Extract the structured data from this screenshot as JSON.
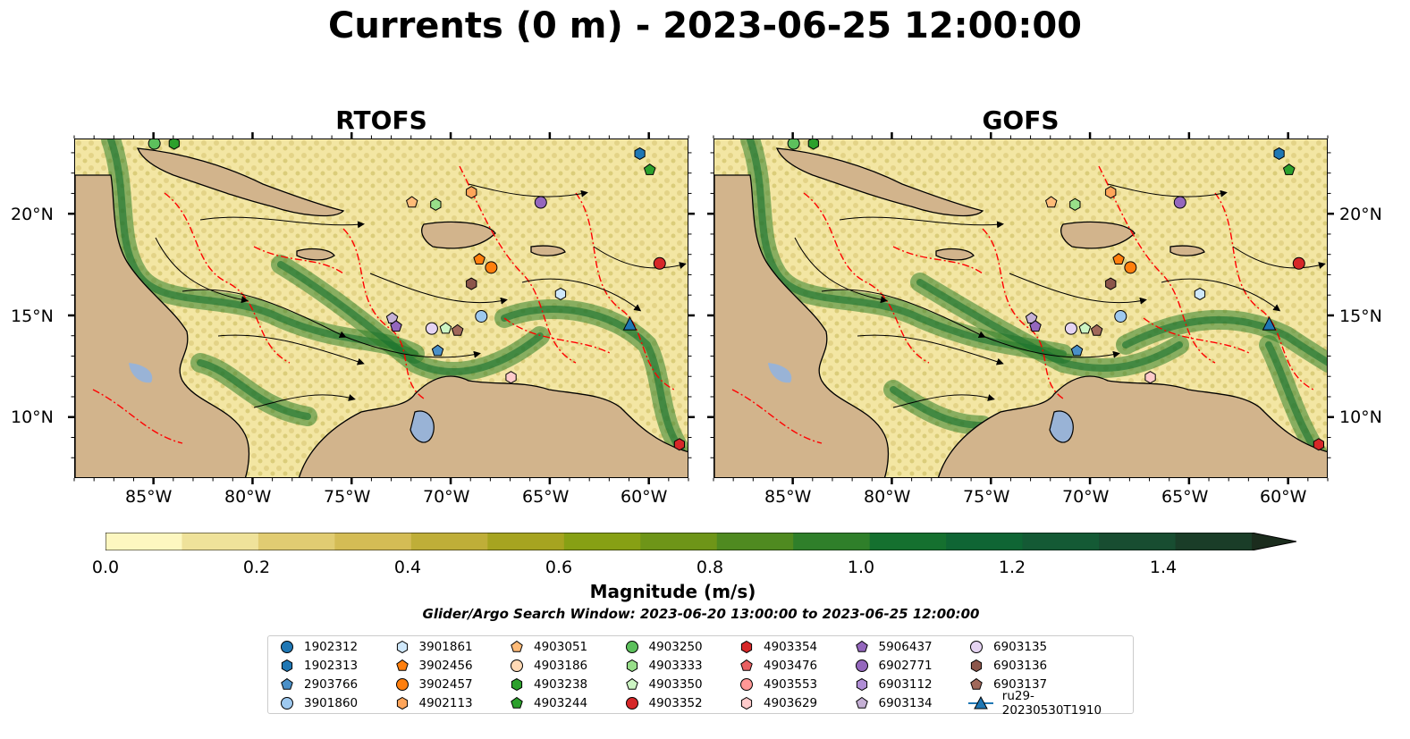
{
  "title": "Currents (0 m) - 2023-06-25 12:00:00",
  "panels": [
    {
      "title": "RTOFS"
    },
    {
      "title": "GOFS"
    }
  ],
  "lon_ticks": [
    "85°W",
    "80°W",
    "75°W",
    "70°W",
    "65°W",
    "60°W"
  ],
  "lat_ticks": [
    "20°N",
    "15°N",
    "10°N"
  ],
  "map_extent": {
    "lon": [
      -89,
      -58
    ],
    "lat": [
      7,
      23.7
    ]
  },
  "colorbar": {
    "label": "Magnitude (m/s)",
    "ticks": [
      "0.0",
      "0.2",
      "0.4",
      "0.6",
      "0.8",
      "1.0",
      "1.2",
      "1.4"
    ],
    "range": [
      0,
      1.5
    ],
    "step": 0.1,
    "extend": "max",
    "colors": [
      "#fdf7c0",
      "#efe29a",
      "#e1cc72",
      "#d4bc55",
      "#bfae38",
      "#a6a420",
      "#87a014",
      "#6e9518",
      "#4f8a20",
      "#2f7f2a",
      "#15702f",
      "#0f6534",
      "#145a35",
      "#184d31",
      "#1a3d28",
      "#1b2c1d"
    ]
  },
  "search_window": "Glider/Argo Search Window: 2023-06-20 13:00:00 to 2023-06-25 12:00:00",
  "colors": {
    "land": "#d2b48c",
    "lakes": "#99b3d6",
    "contour": "#ff0000",
    "ocean_light": "#fdf7c0"
  },
  "legend": [
    {
      "label": "1902312",
      "marker": "circle",
      "color": "#1f77b4"
    },
    {
      "label": "1902313",
      "marker": "hexagon",
      "color": "#1f77b4"
    },
    {
      "label": "2903766",
      "marker": "pentagon",
      "color": "#4a90c8"
    },
    {
      "label": "3901860",
      "marker": "circle",
      "color": "#9ec9ef"
    },
    {
      "label": "3901861",
      "marker": "hexagon",
      "color": "#cfe8fb"
    },
    {
      "label": "3902456",
      "marker": "pentagon",
      "color": "#ff7f0e"
    },
    {
      "label": "3902457",
      "marker": "circle",
      "color": "#ff7f0e"
    },
    {
      "label": "4902113",
      "marker": "hexagon",
      "color": "#ffa55a"
    },
    {
      "label": "4903051",
      "marker": "pentagon",
      "color": "#ffbb78"
    },
    {
      "label": "4903186",
      "marker": "circle",
      "color": "#ffd9b5"
    },
    {
      "label": "4903238",
      "marker": "hexagon",
      "color": "#2ca02c"
    },
    {
      "label": "4903244",
      "marker": "pentagon",
      "color": "#2ca02c"
    },
    {
      "label": "4903250",
      "marker": "circle",
      "color": "#5cc05c"
    },
    {
      "label": "4903333",
      "marker": "hexagon",
      "color": "#98df8a"
    },
    {
      "label": "4903350",
      "marker": "pentagon",
      "color": "#cdf5c4"
    },
    {
      "label": "4903352",
      "marker": "circle",
      "color": "#d62728"
    },
    {
      "label": "4903354",
      "marker": "hexagon",
      "color": "#d62728"
    },
    {
      "label": "4903476",
      "marker": "pentagon",
      "color": "#e96062"
    },
    {
      "label": "4903553",
      "marker": "circle",
      "color": "#ff9896"
    },
    {
      "label": "4903629",
      "marker": "hexagon",
      "color": "#ffcbcb"
    },
    {
      "label": "5906437",
      "marker": "pentagon",
      "color": "#9467bd"
    },
    {
      "label": "6902771",
      "marker": "circle",
      "color": "#9467bd"
    },
    {
      "label": "6903112",
      "marker": "hexagon",
      "color": "#b08ed6"
    },
    {
      "label": "6903134",
      "marker": "pentagon",
      "color": "#c5b0d5"
    },
    {
      "label": "6903135",
      "marker": "circle",
      "color": "#e5d4f2"
    },
    {
      "label": "6903136",
      "marker": "hexagon",
      "color": "#8c564b"
    },
    {
      "label": "6903137",
      "marker": "pentagon",
      "color": "#a0685a"
    },
    {
      "label": "ru29-20230530T1910",
      "marker": "triangle-line",
      "color": "#1f77b4"
    }
  ],
  "floats": [
    {
      "id": "4903250",
      "lon": -85.0,
      "lat": 23.5
    },
    {
      "id": "4903238",
      "lon": -84.0,
      "lat": 23.5
    },
    {
      "id": "1902313",
      "lon": -60.5,
      "lat": 23.0
    },
    {
      "id": "4903244",
      "lon": -60.0,
      "lat": 22.2
    },
    {
      "id": "4902113",
      "lon": -69.0,
      "lat": 21.1
    },
    {
      "id": "6902771",
      "lon": -65.5,
      "lat": 20.6
    },
    {
      "id": "4903333",
      "lon": -70.8,
      "lat": 20.5
    },
    {
      "id": "4903051",
      "lon": -72.0,
      "lat": 20.6
    },
    {
      "id": "3902456",
      "lon": -68.6,
      "lat": 17.8
    },
    {
      "id": "3902457",
      "lon": -68.0,
      "lat": 17.4
    },
    {
      "id": "4903352",
      "lon": -59.5,
      "lat": 17.6
    },
    {
      "id": "6903136",
      "lon": -69.0,
      "lat": 16.6
    },
    {
      "id": "3901861",
      "lon": -64.5,
      "lat": 16.1
    },
    {
      "id": "3901860",
      "lon": -68.5,
      "lat": 15.0
    },
    {
      "id": "6903134",
      "lon": -73.0,
      "lat": 14.9
    },
    {
      "id": "5906437",
      "lon": -72.8,
      "lat": 14.5
    },
    {
      "id": "6903135",
      "lon": -71.0,
      "lat": 14.4
    },
    {
      "id": "4903350",
      "lon": -70.3,
      "lat": 14.4
    },
    {
      "id": "6903137",
      "lon": -69.7,
      "lat": 14.3
    },
    {
      "id": "2903766",
      "lon": -70.7,
      "lat": 13.3
    },
    {
      "id": "4903629",
      "lon": -67.0,
      "lat": 12.0
    },
    {
      "id": "4903354",
      "lon": -58.5,
      "lat": 8.7
    }
  ],
  "glider": {
    "id": "ru29-20230530T1910",
    "lon": -61.0,
    "lat": 14.6
  }
}
